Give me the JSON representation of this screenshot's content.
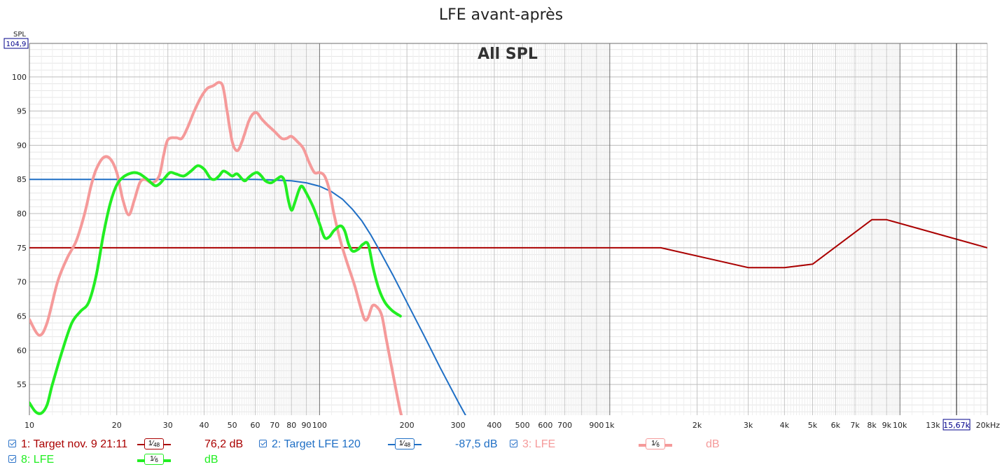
{
  "title": "LFE avant-après",
  "chart_data": {
    "type": "line",
    "heading": "All SPL",
    "ylabel": "SPL",
    "x_scale": "log",
    "xlim": [
      10,
      20000
    ],
    "ylim": [
      50.5,
      104.9
    ],
    "y_top_readout": "104,9",
    "cursor_readout": "15,67k",
    "cursor_x": 15670,
    "grid": true,
    "y_ticks": [
      55,
      60,
      65,
      70,
      75,
      80,
      85,
      90,
      95,
      100
    ],
    "x_ticks": [
      {
        "v": 10,
        "t": "10"
      },
      {
        "v": 20,
        "t": "20"
      },
      {
        "v": 30,
        "t": "30"
      },
      {
        "v": 40,
        "t": "40"
      },
      {
        "v": 50,
        "t": "50"
      },
      {
        "v": 60,
        "t": "60"
      },
      {
        "v": 70,
        "t": "70"
      },
      {
        "v": 80,
        "t": "80"
      },
      {
        "v": 90,
        "t": "90"
      },
      {
        "v": 100,
        "t": "100"
      },
      {
        "v": 200,
        "t": "200"
      },
      {
        "v": 300,
        "t": "300"
      },
      {
        "v": 400,
        "t": "400"
      },
      {
        "v": 500,
        "t": "500"
      },
      {
        "v": 600,
        "t": "600"
      },
      {
        "v": 700,
        "t": "700"
      },
      {
        "v": 900,
        "t": "900"
      },
      {
        "v": 1000,
        "t": "1k"
      },
      {
        "v": 2000,
        "t": "2k"
      },
      {
        "v": 3000,
        "t": "3k"
      },
      {
        "v": 4000,
        "t": "4k"
      },
      {
        "v": 5000,
        "t": "5k"
      },
      {
        "v": 6000,
        "t": "6k"
      },
      {
        "v": 7000,
        "t": "7k"
      },
      {
        "v": 8000,
        "t": "8k"
      },
      {
        "v": 9000,
        "t": "9k"
      },
      {
        "v": 10000,
        "t": "10k"
      },
      {
        "v": 13000,
        "t": "13k"
      },
      {
        "v": 20000,
        "t": "20kHz"
      }
    ],
    "series": [
      {
        "name": "Target nov. 9 21:11",
        "color": "#aa0000",
        "width": 2,
        "points": [
          [
            10,
            75
          ],
          [
            1500,
            75
          ],
          [
            3000,
            72.1
          ],
          [
            4000,
            72.1
          ],
          [
            5000,
            72.6
          ],
          [
            8000,
            79.1
          ],
          [
            9000,
            79.1
          ],
          [
            20000,
            75
          ]
        ]
      },
      {
        "name": "Target LFE 120",
        "color": "#1f6fc5",
        "width": 2,
        "points": [
          [
            10,
            85
          ],
          [
            40,
            85
          ],
          [
            60,
            85
          ],
          [
            70,
            84.9
          ],
          [
            80,
            84.8
          ],
          [
            90,
            84.5
          ],
          [
            100,
            84
          ],
          [
            110,
            83.2
          ],
          [
            120,
            82.1
          ],
          [
            130,
            80.6
          ],
          [
            140,
            78.9
          ],
          [
            150,
            76.9
          ],
          [
            160,
            74.8
          ],
          [
            180,
            70.8
          ],
          [
            200,
            67
          ],
          [
            230,
            62
          ],
          [
            260,
            57.5
          ],
          [
            300,
            52.5
          ],
          [
            328,
            49.5
          ]
        ]
      },
      {
        "name": "LFE",
        "color": "#f59a9a",
        "width": 4,
        "points": [
          [
            10,
            64.5
          ],
          [
            10.8,
            62.2
          ],
          [
            11.5,
            64
          ],
          [
            12.5,
            70
          ],
          [
            13.5,
            73.5
          ],
          [
            14.5,
            76
          ],
          [
            15.5,
            80
          ],
          [
            16.3,
            84
          ],
          [
            17,
            86.5
          ],
          [
            18,
            88.2
          ],
          [
            19,
            88
          ],
          [
            20,
            86
          ],
          [
            21,
            82
          ],
          [
            22,
            79.8
          ],
          [
            23,
            82
          ],
          [
            24,
            84.5
          ],
          [
            25,
            85
          ],
          [
            26.5,
            84.5
          ],
          [
            28,
            85.5
          ],
          [
            29,
            88.5
          ],
          [
            30,
            90.8
          ],
          [
            32,
            91.1
          ],
          [
            33.5,
            91
          ],
          [
            35,
            92.5
          ],
          [
            37,
            95
          ],
          [
            39,
            97
          ],
          [
            41,
            98.3
          ],
          [
            43,
            98.7
          ],
          [
            45,
            99.2
          ],
          [
            46.5,
            98.5
          ],
          [
            48,
            95
          ],
          [
            50,
            90.5
          ],
          [
            52,
            89.2
          ],
          [
            54,
            90.5
          ],
          [
            57,
            93.5
          ],
          [
            59,
            94.6
          ],
          [
            61,
            94.7
          ],
          [
            63,
            93.9
          ],
          [
            66,
            93
          ],
          [
            70,
            92
          ],
          [
            74,
            91
          ],
          [
            77,
            91
          ],
          [
            80,
            91.3
          ],
          [
            84,
            90.5
          ],
          [
            88,
            89.5
          ],
          [
            92,
            87.5
          ],
          [
            96,
            86
          ],
          [
            100,
            86
          ],
          [
            104,
            85.5
          ],
          [
            108,
            83.5
          ],
          [
            112,
            80
          ],
          [
            118,
            76
          ],
          [
            124,
            73
          ],
          [
            132,
            69.5
          ],
          [
            138,
            66.5
          ],
          [
            143,
            64.5
          ],
          [
            147,
            64.8
          ],
          [
            152,
            66.5
          ],
          [
            158,
            66.3
          ],
          [
            164,
            65
          ],
          [
            170,
            61.5
          ],
          [
            180,
            56
          ],
          [
            190,
            51
          ],
          [
            195,
            49.5
          ]
        ]
      },
      {
        "name": "LFE",
        "color": "#22ee22",
        "width": 4,
        "points": [
          [
            10,
            52.3
          ],
          [
            10.5,
            51
          ],
          [
            11,
            50.8
          ],
          [
            11.5,
            52
          ],
          [
            12,
            55
          ],
          [
            13,
            60
          ],
          [
            14,
            64
          ],
          [
            15,
            65.7
          ],
          [
            16,
            67
          ],
          [
            17,
            71
          ],
          [
            18,
            77
          ],
          [
            19,
            81.5
          ],
          [
            20,
            84.2
          ],
          [
            21,
            85.3
          ],
          [
            22,
            85.8
          ],
          [
            23,
            86
          ],
          [
            24,
            85.8
          ],
          [
            25.5,
            85
          ],
          [
            27,
            84.1
          ],
          [
            28,
            84.3
          ],
          [
            29,
            85
          ],
          [
            30.5,
            86
          ],
          [
            32,
            85.8
          ],
          [
            34,
            85.5
          ],
          [
            36,
            86.2
          ],
          [
            38,
            87
          ],
          [
            40,
            86.5
          ],
          [
            42,
            85.2
          ],
          [
            43.5,
            85
          ],
          [
            45,
            85.5
          ],
          [
            46.5,
            86.2
          ],
          [
            48,
            86
          ],
          [
            50,
            85.5
          ],
          [
            52,
            85.8
          ],
          [
            55,
            84.8
          ],
          [
            57,
            85.3
          ],
          [
            59,
            85.8
          ],
          [
            61,
            86
          ],
          [
            63,
            85.5
          ],
          [
            65,
            84.8
          ],
          [
            68,
            84.5
          ],
          [
            71,
            85
          ],
          [
            74,
            85.4
          ],
          [
            76,
            84.5
          ],
          [
            78,
            82
          ],
          [
            80,
            80.5
          ],
          [
            82,
            81.5
          ],
          [
            85,
            83.5
          ],
          [
            87,
            84
          ],
          [
            90,
            83
          ],
          [
            95,
            81
          ],
          [
            100,
            78.5
          ],
          [
            104,
            76.5
          ],
          [
            108,
            76.6
          ],
          [
            112,
            77.5
          ],
          [
            118,
            78.2
          ],
          [
            122,
            77.5
          ],
          [
            126,
            75.5
          ],
          [
            130,
            74.5
          ],
          [
            136,
            74.8
          ],
          [
            141,
            75.5
          ],
          [
            147,
            75.5
          ],
          [
            153,
            72
          ],
          [
            160,
            69
          ],
          [
            168,
            67
          ],
          [
            178,
            65.8
          ],
          [
            190,
            65
          ]
        ]
      }
    ]
  },
  "legend": [
    {
      "row": 0,
      "label": "1: Target nov. 9 21:11",
      "smoothing_den": "48",
      "value": "76,2 dB",
      "color": "#aa0000",
      "line_width": 2
    },
    {
      "row": 0,
      "label": "2: Target LFE 120",
      "smoothing_den": "48",
      "value": "-87,5 dB",
      "color": "#1f6fc5",
      "line_width": 2
    },
    {
      "row": 0,
      "label": "3: LFE",
      "smoothing_den": "6",
      "value": "dB",
      "color": "#f59a9a",
      "line_width": 4
    },
    {
      "row": 1,
      "label": "8: LFE",
      "smoothing_den": "6",
      "value": "dB",
      "color": "#22ee22",
      "line_width": 4
    }
  ]
}
